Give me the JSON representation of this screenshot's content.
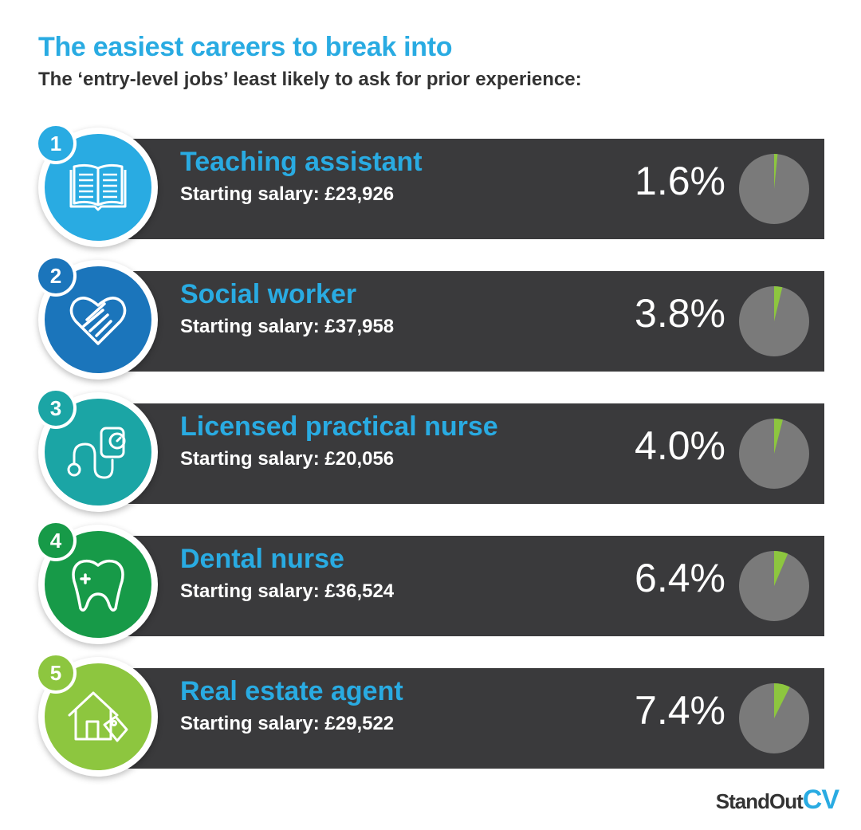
{
  "title": "The easiest careers to break into",
  "subtitle": "The ‘entry-level jobs’ least likely to ask for prior experience:",
  "brand": {
    "part1": "StandOut",
    "part2": "CV"
  },
  "colors": {
    "title": "#29abe2",
    "bar": "#3a3a3c",
    "pie_bg": "#7a7a7a",
    "pie_slice": "#8dc63f"
  },
  "chart_data": {
    "type": "bar",
    "title": "The easiest careers to break into",
    "subtitle": "The ‘entry-level jobs’ least likely to ask for prior experience:",
    "items": [
      {
        "rank": "1",
        "job": "Teaching assistant",
        "salary": "Starting salary: £23,926",
        "value": 1.6,
        "label": "1.6%",
        "icon": "book-icon",
        "color": "#29abe2"
      },
      {
        "rank": "2",
        "job": "Social worker",
        "salary": "Starting salary: £37,958",
        "value": 3.8,
        "label": "3.8%",
        "icon": "heart-hands-icon",
        "color": "#1b75bb"
      },
      {
        "rank": "3",
        "job": "Licensed practical nurse",
        "salary": "Starting salary: £20,056",
        "value": 4.0,
        "label": "4.0%",
        "icon": "stethoscope-icon",
        "color": "#1ba5a5"
      },
      {
        "rank": "4",
        "job": "Dental nurse",
        "salary": "Starting salary: £36,524",
        "value": 6.4,
        "label": "6.4%",
        "icon": "tooth-icon",
        "color": "#179a48"
      },
      {
        "rank": "5",
        "job": "Real estate agent",
        "salary": "Starting salary: £29,522",
        "value": 7.4,
        "label": "7.4%",
        "icon": "house-tag-icon",
        "color": "#8dc63f"
      }
    ]
  }
}
